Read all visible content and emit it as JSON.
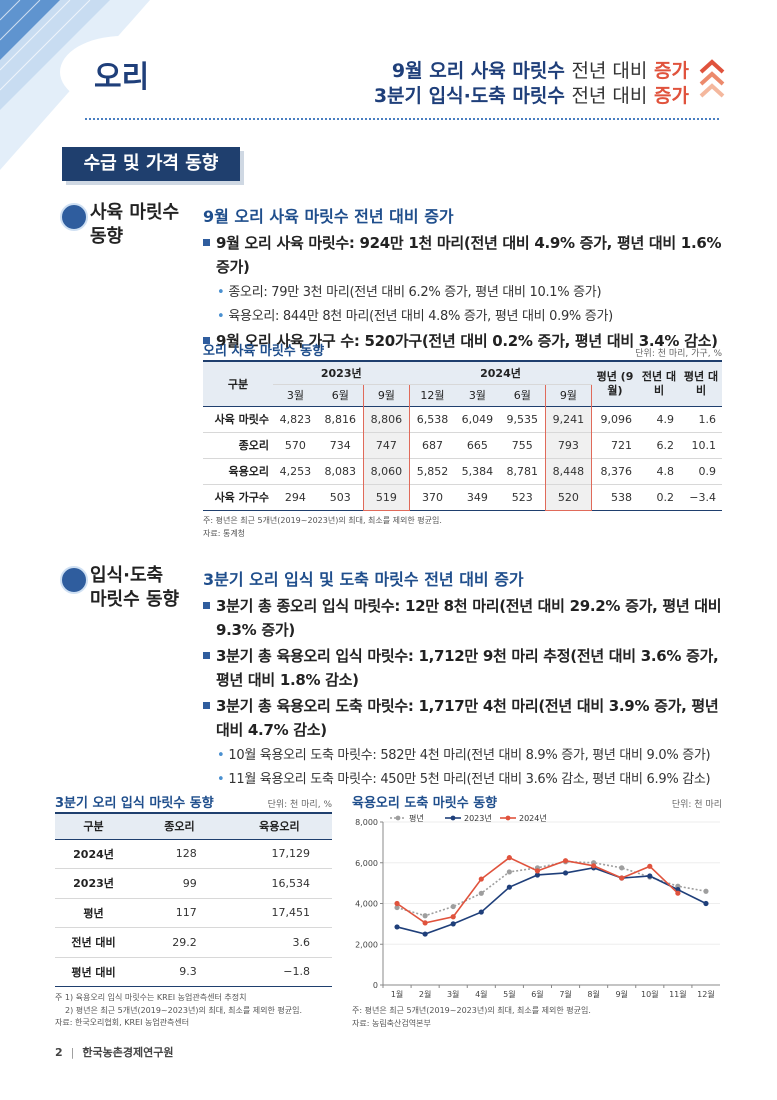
{
  "header": {
    "title": "오리",
    "headline": [
      [
        "9월 오리 사육 마릿수",
        "전년 대비",
        "증가"
      ],
      [
        "3분기 입식·도축 마릿수",
        "전년 대비",
        "증가"
      ]
    ]
  },
  "banner": "수급 및 가격 동향",
  "section1": {
    "heading": [
      "사육 마릿수",
      "동향"
    ],
    "subtitle": "9월 오리 사육 마릿수 전년 대비 증가",
    "bullets": [
      {
        "text": "9월 오리 사육 마릿수: 924만 1천 마리(전년 대비 4.9% 증가, 평년 대비 1.6% 증가)",
        "sub": [
          "종오리: 79만 3천 마리(전년 대비 6.2% 증가, 평년 대비 10.1% 증가)",
          "육용오리: 844만 8천 마리(전년 대비 4.8% 증가, 평년 대비 0.9% 증가)"
        ]
      },
      {
        "text": "9월 오리 사육 가구 수: 520가구(전년 대비 0.2% 증가, 평년 대비 3.4% 감소)",
        "sub": []
      }
    ],
    "table": {
      "title": "오리 사육 마릿수 동향",
      "unit": "단위: 천 마리, 가구, %",
      "corner": "구분",
      "groups": [
        "2023년",
        "2024년"
      ],
      "months": [
        "3월",
        "6월",
        "9월",
        "12월",
        "3월",
        "6월",
        "9월"
      ],
      "extra_headers": [
        "평년 (9월)",
        "전년 대비",
        "평년 대비"
      ],
      "rows": [
        [
          "사육 마릿수",
          "4,823",
          "8,816",
          "8,806",
          "6,538",
          "6,049",
          "9,535",
          "9,241",
          "9,096",
          "4.9",
          "1.6"
        ],
        [
          "종오리",
          "570",
          "734",
          "747",
          "687",
          "665",
          "755",
          "793",
          "721",
          "6.2",
          "10.1"
        ],
        [
          "육용오리",
          "4,253",
          "8,083",
          "8,060",
          "5,852",
          "5,384",
          "8,781",
          "8,448",
          "8,376",
          "4.8",
          "0.9"
        ],
        [
          "사육 가구수",
          "294",
          "503",
          "519",
          "370",
          "349",
          "523",
          "520",
          "538",
          "0.2",
          "−3.4"
        ]
      ],
      "notes": [
        "주: 평년은 최근 5개년(2019~2023년)의 최대, 최소를 제외한 평균임.",
        "자료: 통계청"
      ]
    }
  },
  "section2": {
    "heading": [
      "입식·도축",
      "마릿수 동향"
    ],
    "subtitle": "3분기 오리 입식 및 도축 마릿수 전년 대비 증가",
    "bullets": [
      {
        "text": "3분기 총 종오리 입식 마릿수: 12만 8천 마리(전년 대비 29.2% 증가, 평년 대비 9.3% 증가)",
        "sub": []
      },
      {
        "text": "3분기 총 육용오리 입식 마릿수: 1,712만 9천 마리 추정(전년 대비 3.6% 증가, 평년 대비 1.8% 감소)",
        "sub": []
      },
      {
        "text": "3분기 총 육용오리 도축 마릿수: 1,717만 4천 마리(전년 대비 3.9% 증가, 평년 대비 4.7% 감소)",
        "sub": [
          "10월 육용오리 도축 마릿수: 582만 4천 마리(전년 대비 8.9% 증가, 평년 대비 9.0% 증가)",
          "11월 육용오리 도축 마릿수: 450만 5천 마리(전년 대비 3.6% 감소, 평년 대비 6.9% 감소)"
        ]
      }
    ],
    "table": {
      "title": "3분기 오리 입식 마릿수 동향",
      "unit": "단위: 천 마리, %",
      "headers": [
        "구분",
        "종오리",
        "육용오리"
      ],
      "rows": [
        [
          "2024년",
          "128",
          "17,129"
        ],
        [
          "2023년",
          "99",
          "16,534"
        ],
        [
          "평년",
          "117",
          "17,451"
        ],
        [
          "전년 대비",
          "29.2",
          "3.6"
        ],
        [
          "평년 대비",
          "9.3",
          "−1.8"
        ]
      ],
      "notes": [
        "주 1) 육용오리 입식 마릿수는 KREI 농업관측센터 추정치",
        "2) 평년은 최근 5개년(2019~2023년)의 최대, 최소를 제외한 평균임.",
        "자료: 한국오리협회, KREI 농업관측센터"
      ]
    }
  },
  "chart_data": {
    "type": "line",
    "title": "육용오리 도축 마릿수 동향",
    "unit": "단위: 천 마리",
    "categories": [
      "1월",
      "2월",
      "3월",
      "4월",
      "5월",
      "6월",
      "7월",
      "8월",
      "9월",
      "10월",
      "11월",
      "12월"
    ],
    "series": [
      {
        "name": "평년",
        "color": "#9e9e9e",
        "dashed": true,
        "values": [
          3800,
          3400,
          3850,
          4500,
          5550,
          5750,
          6050,
          6000,
          5750,
          5300,
          4850,
          4600
        ]
      },
      {
        "name": "2023년",
        "color": "#1f3f7a",
        "values": [
          2850,
          2500,
          3000,
          3580,
          4800,
          5400,
          5500,
          5750,
          5250,
          5350,
          4680,
          4000
        ]
      },
      {
        "name": "2024년",
        "color": "#e0533d",
        "values": [
          4000,
          3050,
          3350,
          5200,
          6250,
          5600,
          6100,
          5850,
          5250,
          5824,
          4505,
          null
        ]
      }
    ],
    "ylim": [
      0,
      8000
    ],
    "yticks": [
      0,
      {
        "value": 2000,
        "label": "2,000"
      },
      {
        "value": 4000,
        "label": "4,000"
      },
      {
        "value": 6000,
        "label": "6,000"
      },
      {
        "value": 8000,
        "label": "8,000"
      }
    ],
    "notes": [
      "주: 평년은 최근 5개년(2019~2023년)의 최대, 최소를 제외한 평균임.",
      "자료: 농림축산검역본부"
    ]
  },
  "footer": {
    "page": "2",
    "org": "한국농촌경제연구원"
  }
}
